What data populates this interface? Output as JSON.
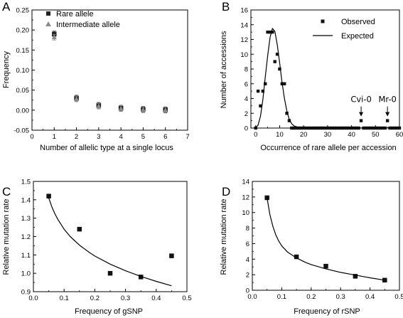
{
  "chart_data": [
    {
      "panel": "A",
      "type": "scatter",
      "xlabel": "Number of allelic type at a single locus",
      "ylabel": "Frequency",
      "xlim": [
        0,
        7
      ],
      "ylim": [
        -0.05,
        0.25
      ],
      "xticks": [
        0,
        1,
        2,
        3,
        4,
        5,
        6,
        7
      ],
      "yticks": [
        -0.05,
        0.0,
        0.05,
        0.1,
        0.15,
        0.2,
        0.25
      ],
      "ytick_labels": [
        "-0.05",
        "0.00",
        "0.05",
        "0.10",
        "0.15",
        "0.20",
        "0.25"
      ],
      "legend_position": "top-left",
      "series": [
        {
          "name": "Rare allele",
          "marker": "square",
          "color": "#222222",
          "x": [
            1,
            2,
            3,
            4,
            5,
            6
          ],
          "y": [
            0.19,
            0.03,
            0.012,
            0.005,
            0.002,
            0.001
          ]
        },
        {
          "name": "Intermediate allele",
          "marker": "triangle",
          "color": "#8c8c8c",
          "x": [
            1,
            2,
            3,
            4,
            5,
            6
          ],
          "y": [
            0.182,
            0.028,
            0.01,
            0.004,
            0.001,
            0.0
          ]
        }
      ],
      "error_bars": true
    },
    {
      "panel": "B",
      "type": "scatter",
      "xlabel": "Occurrence of rare allele per accession",
      "ylabel": "Number of accessions",
      "xlim": [
        -2,
        60
      ],
      "ylim": [
        0,
        16
      ],
      "xticks": [
        0,
        10,
        20,
        30,
        40,
        50,
        60
      ],
      "yticks": [
        0,
        2,
        4,
        6,
        8,
        10,
        12,
        14,
        16
      ],
      "legend_position": "top-right",
      "series": [
        {
          "name": "Observed",
          "marker": "square",
          "color": "#111111",
          "x": [
            0,
            1,
            2,
            3,
            4,
            5,
            6,
            7,
            8,
            9,
            10,
            11,
            12,
            13,
            14,
            15,
            16,
            17,
            18,
            19,
            20,
            21,
            22,
            23,
            24,
            25,
            26,
            27,
            28,
            29,
            30,
            31,
            32,
            33,
            34,
            35,
            36,
            37,
            38,
            39,
            40,
            41,
            42,
            43,
            44,
            45,
            46,
            47,
            48,
            49,
            50,
            51,
            52,
            53,
            54,
            55,
            56,
            57,
            58,
            59,
            60
          ],
          "y": [
            0,
            5,
            3,
            5,
            6,
            13,
            13,
            13,
            9,
            10,
            8,
            6,
            6,
            2,
            1,
            0,
            0,
            0,
            0,
            0,
            0,
            0,
            0,
            0,
            0,
            0,
            0,
            0,
            0,
            0,
            0,
            0,
            0,
            0,
            0,
            0,
            0,
            0,
            0,
            0,
            0,
            0,
            0,
            0,
            1,
            0,
            0,
            0,
            0,
            0,
            0,
            0,
            0,
            0,
            0,
            1,
            0,
            0,
            0,
            0,
            0
          ]
        },
        {
          "name": "Expected",
          "line": true,
          "color": "#000000",
          "x": [
            0,
            1,
            2,
            3,
            4,
            5,
            6,
            7,
            8,
            9,
            10,
            11,
            12,
            13,
            14,
            15,
            16,
            18,
            20,
            25,
            30,
            40,
            50,
            60
          ],
          "y": [
            0.02,
            0.4,
            1.6,
            3.9,
            6.9,
            9.8,
            12.3,
            13.5,
            13.1,
            11.3,
            8.8,
            6.2,
            4.0,
            2.3,
            1.2,
            0.6,
            0.3,
            0.06,
            0.01,
            0,
            0,
            0,
            0,
            0
          ]
        }
      ],
      "annotations": [
        {
          "text": "Cvi-0",
          "x": 44,
          "y": 1
        },
        {
          "text": "Mr-0",
          "x": 55,
          "y": 1
        }
      ]
    },
    {
      "panel": "C",
      "type": "scatter",
      "xlabel": "Frequency of gSNP",
      "ylabel": "Relative mutation rate",
      "xlim": [
        0.0,
        0.5
      ],
      "ylim": [
        0.9,
        1.5
      ],
      "xticks": [
        0.0,
        0.1,
        0.2,
        0.3,
        0.4,
        0.5
      ],
      "yticks": [
        0.9,
        1.0,
        1.1,
        1.2,
        1.3,
        1.4,
        1.5
      ],
      "series": [
        {
          "marker": "square",
          "color": "#111111",
          "x": [
            0.05,
            0.15,
            0.25,
            0.35,
            0.45
          ],
          "y": [
            1.42,
            1.24,
            1.0,
            0.98,
            1.095
          ]
        },
        {
          "line": true,
          "color": "#000000",
          "x": [
            0.05,
            0.06,
            0.07,
            0.08,
            0.1,
            0.12,
            0.15,
            0.18,
            0.2,
            0.25,
            0.3,
            0.35,
            0.4,
            0.45
          ],
          "y": [
            1.41,
            1.362,
            1.324,
            1.292,
            1.24,
            1.2,
            1.153,
            1.116,
            1.094,
            1.05,
            1.014,
            0.983,
            0.956,
            0.932
          ]
        }
      ]
    },
    {
      "panel": "D",
      "type": "scatter",
      "xlabel": "Frequency of  rSNP",
      "ylabel": "Relative mutation rate",
      "xlim": [
        0.0,
        0.5
      ],
      "ylim": [
        0,
        14
      ],
      "xticks": [
        0.0,
        0.1,
        0.2,
        0.3,
        0.4,
        0.5
      ],
      "yticks": [
        0,
        2,
        4,
        6,
        8,
        10,
        12,
        14
      ],
      "series": [
        {
          "marker": "square",
          "color": "#111111",
          "x": [
            0.05,
            0.15,
            0.25,
            0.35,
            0.45
          ],
          "y": [
            11.9,
            4.3,
            3.1,
            1.8,
            1.3
          ]
        },
        {
          "line": true,
          "color": "#000000",
          "x": [
            0.05,
            0.06,
            0.07,
            0.08,
            0.09,
            0.1,
            0.12,
            0.15,
            0.18,
            0.2,
            0.25,
            0.3,
            0.35,
            0.4,
            0.45
          ],
          "y": [
            11.9,
            9.7,
            8.2,
            7.1,
            6.3,
            5.7,
            4.9,
            4.15,
            3.6,
            3.3,
            2.75,
            2.3,
            1.95,
            1.6,
            1.3
          ]
        }
      ]
    }
  ]
}
